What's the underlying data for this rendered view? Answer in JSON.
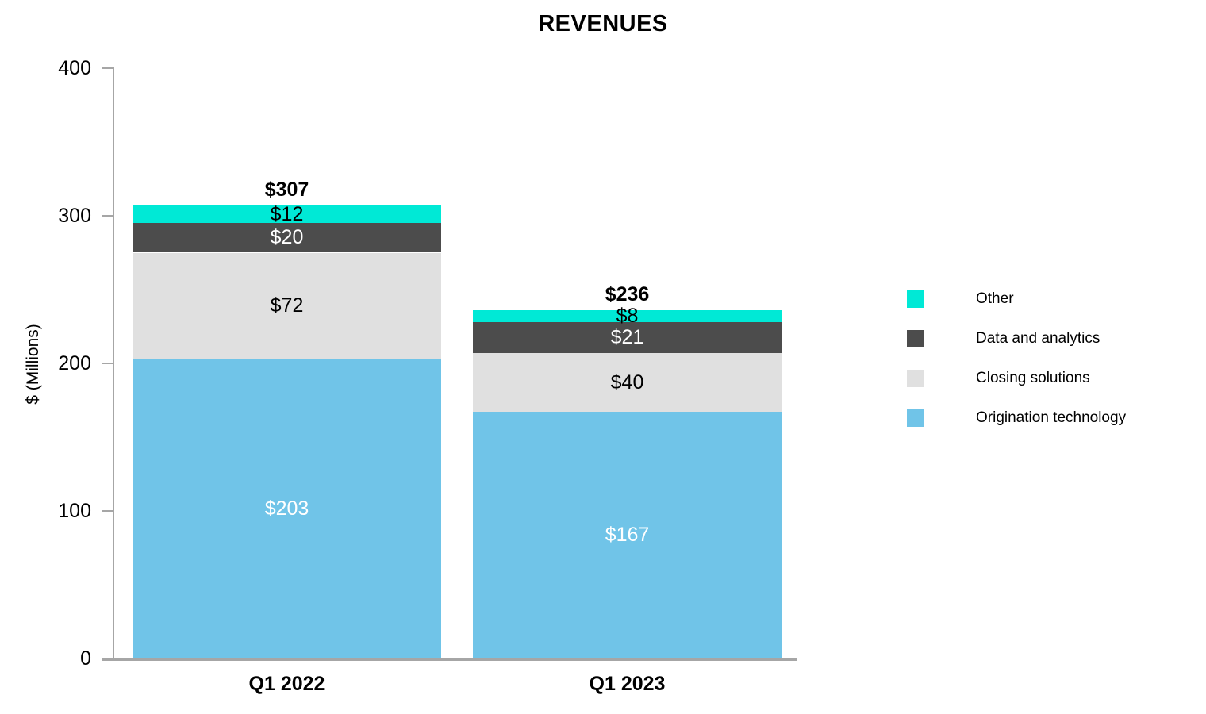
{
  "chart_data": {
    "type": "bar",
    "stacked": true,
    "title": "REVENUES",
    "ylabel": "$ (Millions)",
    "xlabel": "",
    "categories": [
      "Q1 2022",
      "Q1 2023"
    ],
    "series": [
      {
        "name": "Origination technology",
        "values": [
          203,
          167
        ],
        "labels": [
          "$203",
          "$167"
        ],
        "color": "#70C4E8",
        "label_color": "#FFFFFF"
      },
      {
        "name": "Closing solutions",
        "values": [
          72,
          40
        ],
        "labels": [
          "$72",
          "$40"
        ],
        "color": "#E0E0E0",
        "label_color": "#000000"
      },
      {
        "name": "Data and analytics",
        "values": [
          20,
          21
        ],
        "labels": [
          "$20",
          "$21"
        ],
        "color": "#4C4C4C",
        "label_color": "#FFFFFF"
      },
      {
        "name": "Other",
        "values": [
          12,
          8
        ],
        "labels": [
          "$12",
          "$8"
        ],
        "color": "#00E9D6",
        "label_color": "#000000"
      }
    ],
    "totals": [
      "$307",
      "$236"
    ],
    "ylim": [
      0,
      400
    ],
    "yticks": [
      0,
      100,
      200,
      300,
      400
    ],
    "grid": false,
    "legend": [
      "Other",
      "Data and analytics",
      "Closing solutions",
      "Origination technology"
    ],
    "legend_position": "right",
    "axis_color": "#A6A6A6"
  }
}
